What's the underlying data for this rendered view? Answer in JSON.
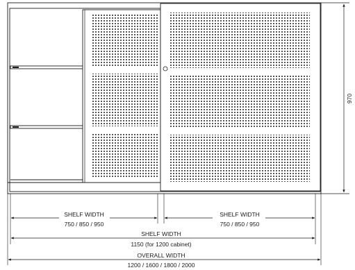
{
  "dimensions": {
    "height": {
      "value": "970"
    },
    "shelf_width_left": {
      "label": "SHELF WIDTH",
      "values": "750 / 850 / 950"
    },
    "shelf_width_right": {
      "label": "SHELF WIDTH",
      "values": "750 / 850 / 950"
    },
    "shelf_width_full": {
      "label": "SHELF WIDTH",
      "values": "1150 (for 1200 cabinet)"
    },
    "overall_width": {
      "label": "OVERALL WIDTH",
      "values": "1200 / 1600 / 1800 / 2000"
    }
  },
  "colors": {
    "line": "#1a1a1a",
    "perforation": "#222222",
    "background": "#ffffff"
  }
}
